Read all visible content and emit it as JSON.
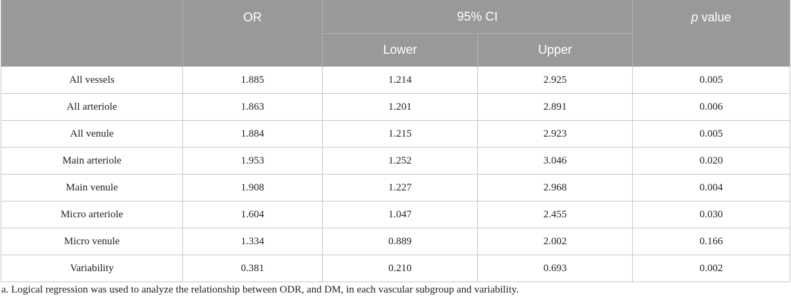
{
  "table": {
    "headers": {
      "blank": "",
      "or": "OR",
      "ci": "95% CI",
      "lower": "Lower",
      "upper": "Upper",
      "p_italic": "p",
      "p_rest": " value"
    },
    "rows": [
      {
        "label": "All vessels",
        "or": "1.885",
        "lower": "1.214",
        "upper": "2.925",
        "p": "0.005"
      },
      {
        "label": "All arteriole",
        "or": "1.863",
        "lower": "1.201",
        "upper": "2.891",
        "p": "0.006"
      },
      {
        "label": "All venule",
        "or": "1.884",
        "lower": "1.215",
        "upper": "2.923",
        "p": "0.005"
      },
      {
        "label": "Main arteriole",
        "or": "1.953",
        "lower": "1.252",
        "upper": "3.046",
        "p": "0.020"
      },
      {
        "label": "Main venule",
        "or": "1.908",
        "lower": "1.227",
        "upper": "2.968",
        "p": "0.004"
      },
      {
        "label": "Micro arteriole",
        "or": "1.604",
        "lower": "1.047",
        "upper": "2.455",
        "p": "0.030"
      },
      {
        "label": "Micro venule",
        "or": "1.334",
        "lower": "0.889",
        "upper": "2.002",
        "p": "0.166"
      },
      {
        "label": "Variability",
        "or": "0.381",
        "lower": "0.210",
        "upper": "0.693",
        "p": "0.002"
      }
    ]
  },
  "footnote": "a. Logical regression was used to analyze the relationship between ODR, and DM, in each vascular subgroup and variability."
}
